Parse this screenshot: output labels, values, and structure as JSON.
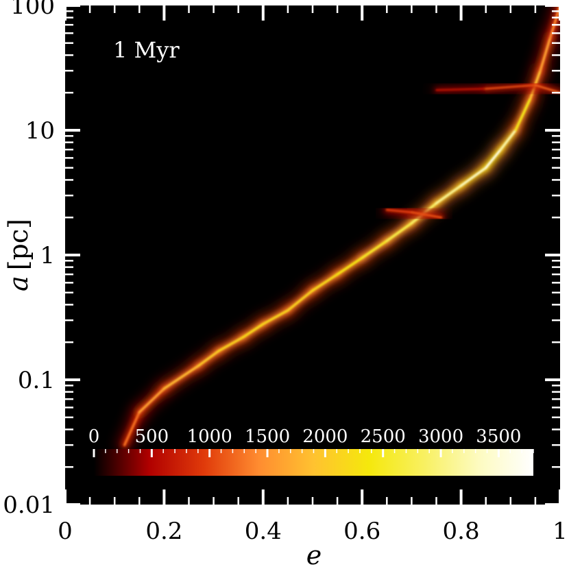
{
  "chart_data": {
    "type": "heatmap",
    "annotation": "1 Myr",
    "xlabel": "e",
    "ylabel_var": "a",
    "ylabel_unit": "[pc]",
    "xlim": [
      0,
      1
    ],
    "ylim": [
      0.01,
      100
    ],
    "y_scale": "log",
    "x_ticks": [
      {
        "value": 0,
        "label": "0"
      },
      {
        "value": 0.2,
        "label": "0.2"
      },
      {
        "value": 0.4,
        "label": "0.4"
      },
      {
        "value": 0.6,
        "label": "0.6"
      },
      {
        "value": 0.8,
        "label": "0.8"
      },
      {
        "value": 1,
        "label": "1"
      }
    ],
    "y_ticks": [
      {
        "value": 0.01,
        "label": "0.01"
      },
      {
        "value": 0.1,
        "label": "0.1"
      },
      {
        "value": 1,
        "label": "1"
      },
      {
        "value": 10,
        "label": "10"
      },
      {
        "value": 100,
        "label": "100"
      }
    ],
    "colorbar": {
      "range": [
        0,
        3800
      ],
      "ticks": [
        {
          "value": 0,
          "label": "0"
        },
        {
          "value": 500,
          "label": "500"
        },
        {
          "value": 1000,
          "label": "1000"
        },
        {
          "value": 1500,
          "label": "1500"
        },
        {
          "value": 2000,
          "label": "2000"
        },
        {
          "value": 2500,
          "label": "2500"
        },
        {
          "value": 3000,
          "label": "3000"
        },
        {
          "value": 3500,
          "label": "3500"
        }
      ],
      "colors": [
        "#000000",
        "#b00000",
        "#e03a0a",
        "#ff8c30",
        "#ffc230",
        "#f5e80c",
        "#f8f060",
        "#fdfbc0",
        "#ffffff"
      ]
    },
    "ridge": [
      {
        "e": 0.12,
        "a": 0.03,
        "density": 900
      },
      {
        "e": 0.15,
        "a": 0.055,
        "density": 1300
      },
      {
        "e": 0.2,
        "a": 0.085,
        "density": 1500
      },
      {
        "e": 0.27,
        "a": 0.13,
        "density": 1700
      },
      {
        "e": 0.31,
        "a": 0.17,
        "density": 1800
      },
      {
        "e": 0.36,
        "a": 0.22,
        "density": 1900
      },
      {
        "e": 0.4,
        "a": 0.28,
        "density": 2000
      },
      {
        "e": 0.45,
        "a": 0.36,
        "density": 1800
      },
      {
        "e": 0.5,
        "a": 0.52,
        "density": 1900
      },
      {
        "e": 0.55,
        "a": 0.7,
        "density": 2000
      },
      {
        "e": 0.6,
        "a": 0.95,
        "density": 2100
      },
      {
        "e": 0.65,
        "a": 1.3,
        "density": 2300
      },
      {
        "e": 0.7,
        "a": 1.8,
        "density": 2400
      },
      {
        "e": 0.75,
        "a": 2.6,
        "density": 2600
      },
      {
        "e": 0.8,
        "a": 3.6,
        "density": 2800
      },
      {
        "e": 0.85,
        "a": 5.0,
        "density": 3000
      },
      {
        "e": 0.88,
        "a": 7.0,
        "density": 3200
      },
      {
        "e": 0.91,
        "a": 10,
        "density": 2400
      },
      {
        "e": 0.94,
        "a": 18,
        "density": 1800
      },
      {
        "e": 0.96,
        "a": 30,
        "density": 1500
      },
      {
        "e": 0.98,
        "a": 55,
        "density": 1300
      },
      {
        "e": 1.0,
        "a": 100,
        "density": 1100
      }
    ],
    "spur_horizontal": [
      {
        "e": 0.75,
        "a": 21,
        "density": 400
      },
      {
        "e": 0.85,
        "a": 21.5,
        "density": 700
      },
      {
        "e": 0.95,
        "a": 23,
        "density": 1200
      },
      {
        "e": 1.0,
        "a": 20,
        "density": 900
      }
    ],
    "spur_branch": [
      {
        "e": 0.65,
        "a": 2.3,
        "density": 700
      },
      {
        "e": 0.7,
        "a": 2.2,
        "density": 1000
      },
      {
        "e": 0.76,
        "a": 2.0,
        "density": 900
      }
    ]
  }
}
